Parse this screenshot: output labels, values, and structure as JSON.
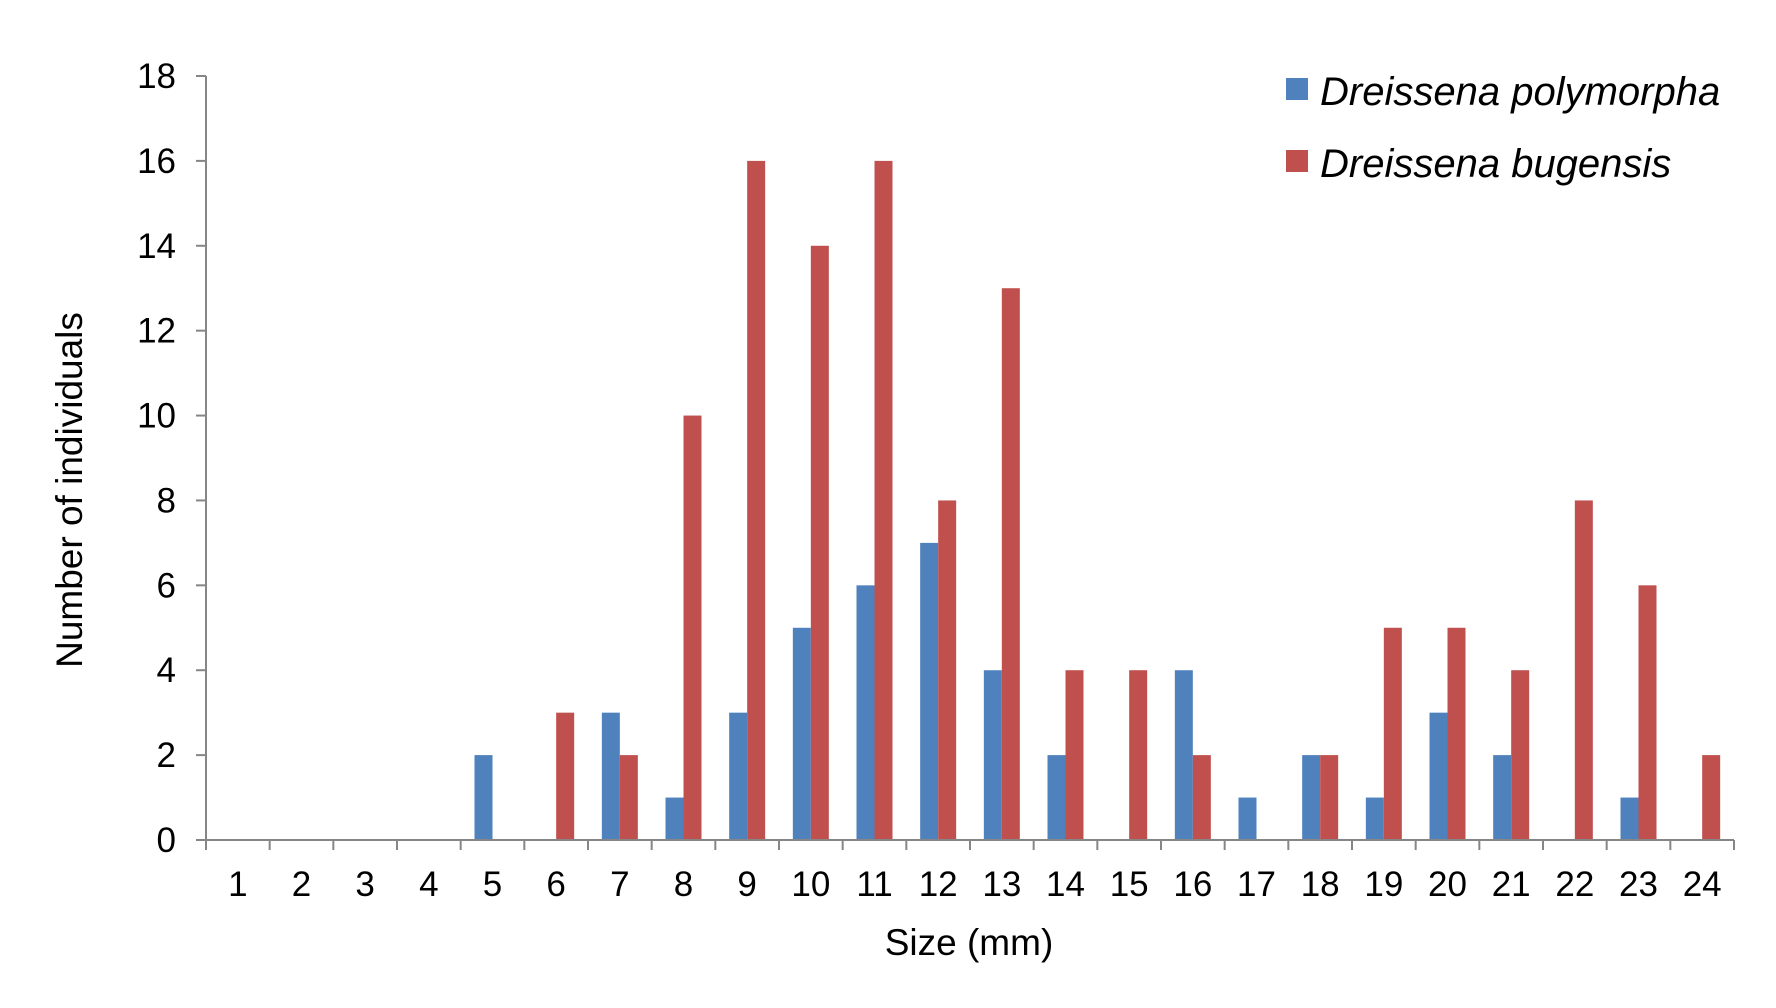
{
  "chart_data": {
    "type": "bar",
    "title": "",
    "xlabel": "Size (mm)",
    "ylabel": "Number of individuals",
    "categories": [
      "1",
      "2",
      "3",
      "4",
      "5",
      "6",
      "7",
      "8",
      "9",
      "10",
      "11",
      "12",
      "13",
      "14",
      "15",
      "16",
      "17",
      "18",
      "19",
      "20",
      "21",
      "22",
      "23",
      "24"
    ],
    "series": [
      {
        "name": "Dreissena polymorpha",
        "color": "#4f81bd",
        "values": [
          0,
          0,
          0,
          0,
          2,
          0,
          3,
          1,
          3,
          5,
          6,
          7,
          4,
          2,
          0,
          4,
          1,
          2,
          1,
          3,
          2,
          0,
          1,
          0
        ]
      },
      {
        "name": "Dreissena bugensis",
        "color": "#c0504d",
        "values": [
          0,
          0,
          0,
          0,
          0,
          3,
          2,
          10,
          16,
          14,
          16,
          8,
          13,
          4,
          4,
          2,
          0,
          2,
          5,
          5,
          4,
          8,
          6,
          2
        ]
      }
    ],
    "ylim": [
      0,
      18
    ],
    "yticks": [
      0,
      2,
      4,
      6,
      8,
      10,
      12,
      14,
      16,
      18
    ],
    "grid": false,
    "legend_position": "top-right"
  }
}
